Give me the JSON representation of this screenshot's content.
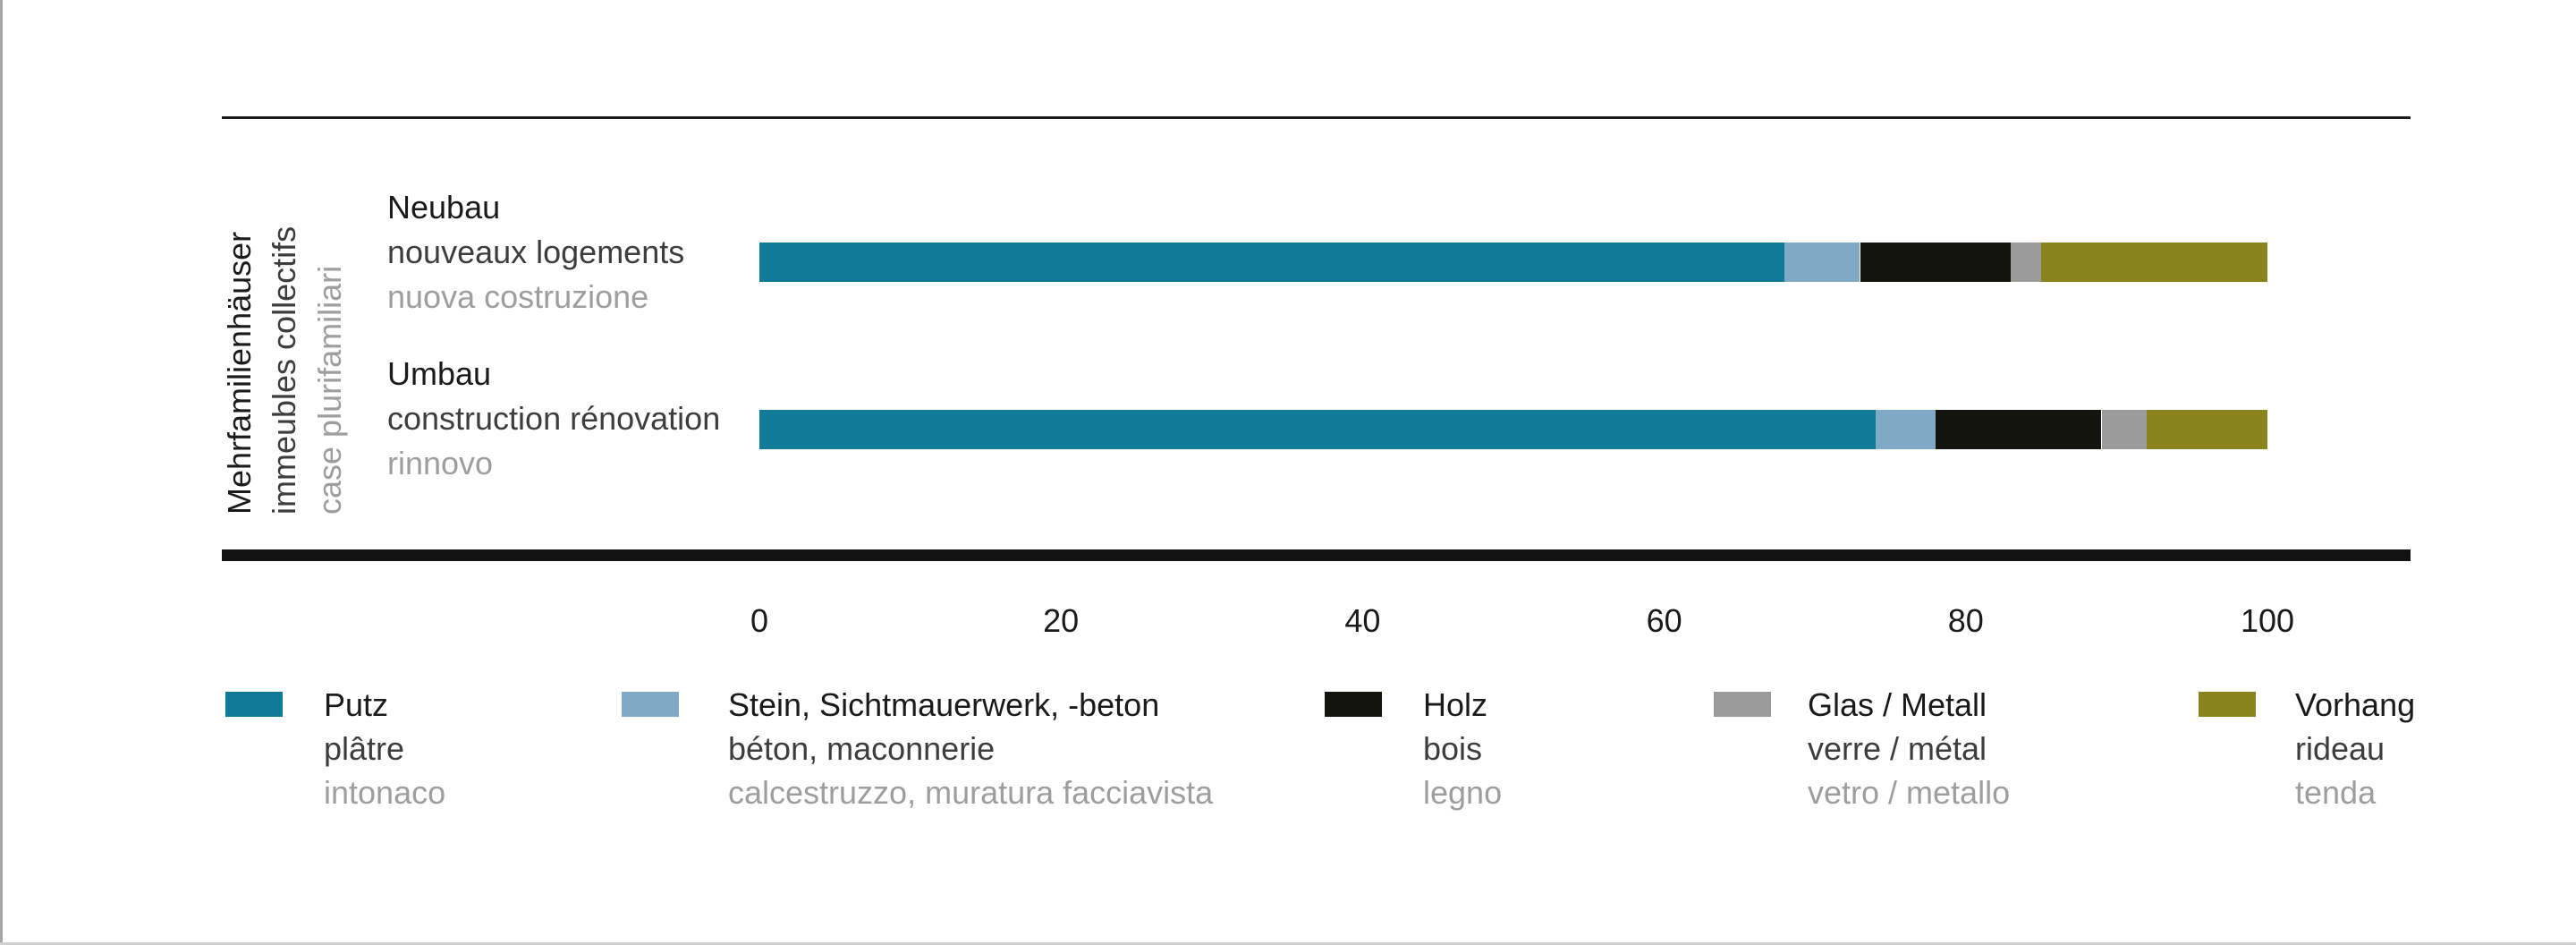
{
  "chart_data": {
    "type": "bar",
    "orientation": "horizontal-stacked",
    "unit": "percent",
    "grid": false,
    "legend_position": "bottom",
    "xlim": [
      0,
      100
    ],
    "x_ticks": [
      0,
      20,
      40,
      60,
      80,
      100
    ],
    "group_label": {
      "de": "Mehrfamilienhäuser",
      "fr": "immeubles collectifs",
      "it": "case plurifamiliari"
    },
    "categories": [
      {
        "de": "Neubau",
        "fr": "nouveaux logements",
        "it": "nuova costruzione"
      },
      {
        "de": "Umbau",
        "fr": "construction rénovation",
        "it": "rinnovo"
      }
    ],
    "series": [
      {
        "name_de": "Putz",
        "name_fr": "plâtre",
        "name_it": "intonaco",
        "color": "#0f7b99",
        "values": [
          68,
          74
        ]
      },
      {
        "name_de": "Stein, Sichtmauerwerk, -beton",
        "name_fr": "béton, maconnerie",
        "name_it": "calcestruzzo, muratura facciavista",
        "color": "#7fa9c4",
        "values": [
          5,
          4
        ]
      },
      {
        "name_de": "Holz",
        "name_fr": "bois",
        "name_it": "legno",
        "color": "#14140e",
        "values": [
          10,
          11
        ]
      },
      {
        "name_de": "Glas / Metall",
        "name_fr": "verre / métal",
        "name_it": "vetro / metallo",
        "color": "#9b9b9b",
        "values": [
          2,
          3
        ]
      },
      {
        "name_de": "Vorhang",
        "name_fr": "rideau",
        "name_it": "tenda",
        "color": "#8a831d",
        "values": [
          15,
          8
        ]
      }
    ]
  }
}
